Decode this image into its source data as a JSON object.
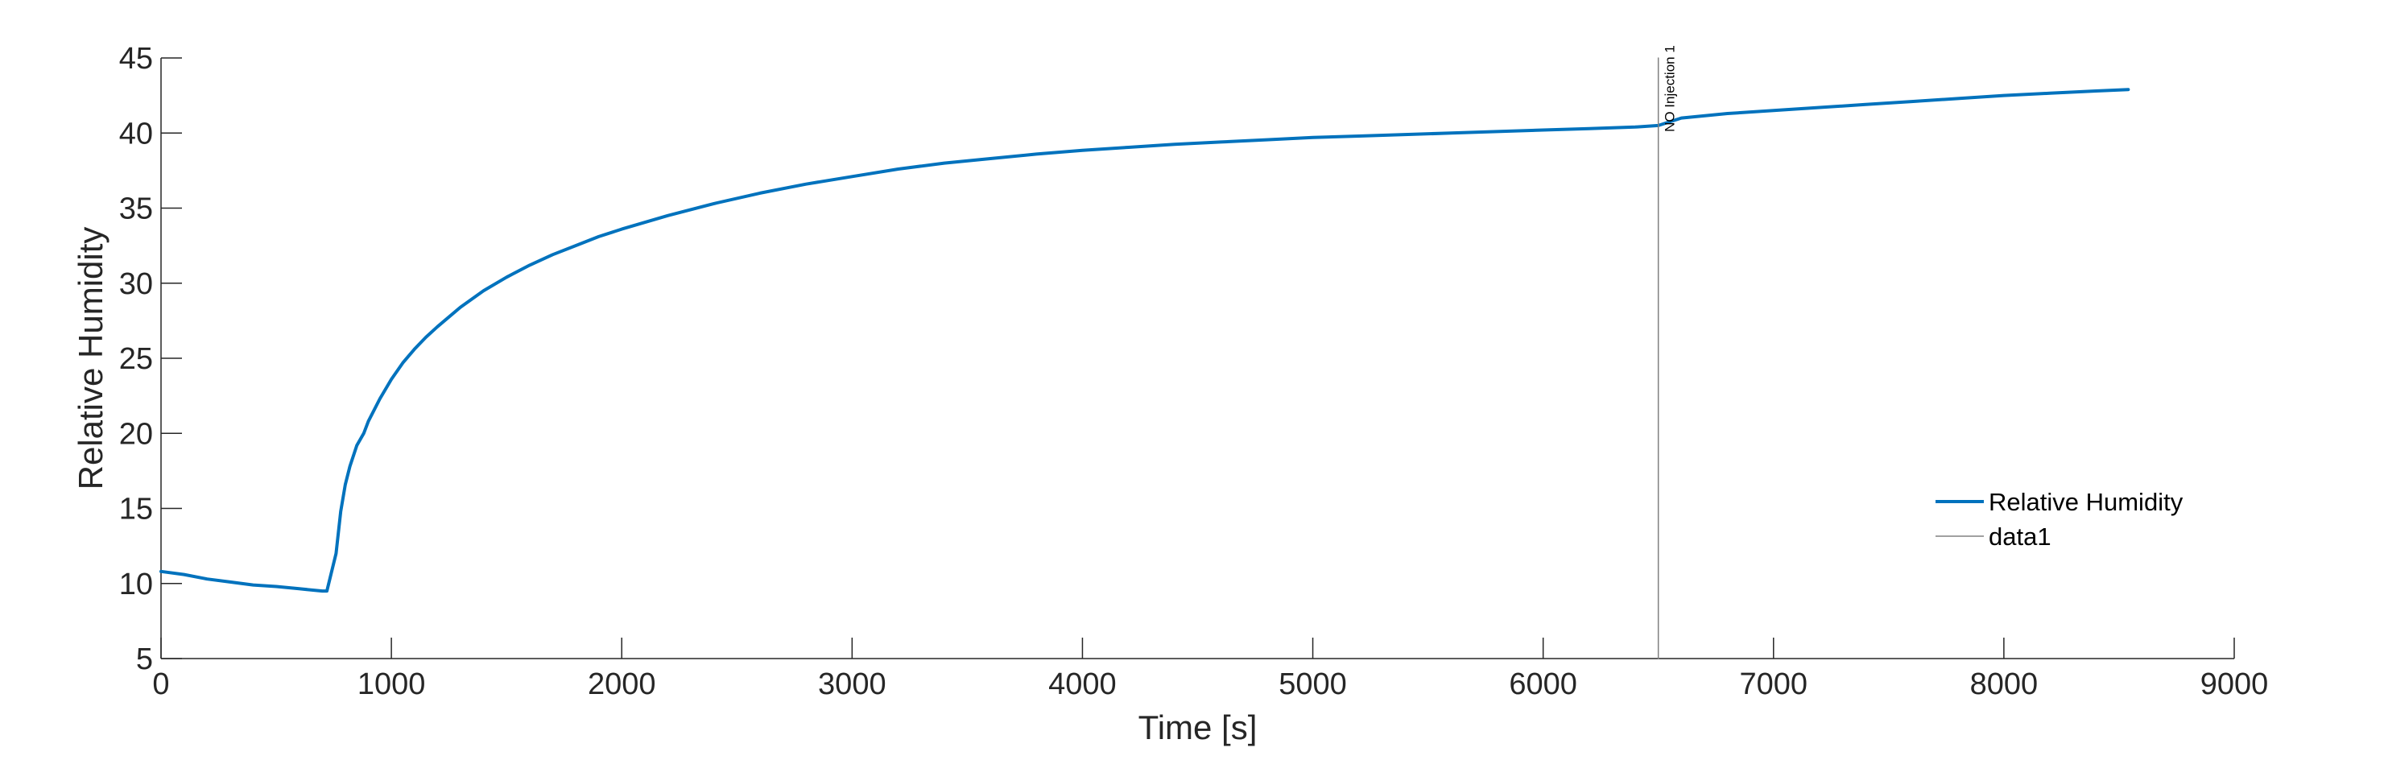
{
  "chart_data": {
    "type": "line",
    "xlabel": "Time [s]",
    "ylabel": "Relative Humidity",
    "xlim": [
      0,
      9000
    ],
    "ylim": [
      5,
      45
    ],
    "xticks": [
      0,
      1000,
      2000,
      3000,
      4000,
      5000,
      6000,
      7000,
      8000,
      9000
    ],
    "yticks": [
      5,
      10,
      15,
      20,
      25,
      30,
      35,
      40,
      45
    ],
    "grid": false,
    "legend_position": "lower-right",
    "series": [
      {
        "name": "Relative Humidity",
        "color": "#0072BD",
        "x": [
          0,
          100,
          200,
          300,
          400,
          500,
          600,
          700,
          720,
          760,
          780,
          800,
          820,
          850,
          880,
          900,
          950,
          1000,
          1050,
          1100,
          1150,
          1200,
          1300,
          1400,
          1500,
          1600,
          1700,
          1800,
          1900,
          2000,
          2200,
          2400,
          2600,
          2800,
          3000,
          3200,
          3400,
          3600,
          3800,
          4000,
          4200,
          4400,
          4600,
          4800,
          5000,
          5200,
          5400,
          5600,
          5800,
          6000,
          6200,
          6400,
          6500,
          6600,
          6800,
          7000,
          7200,
          7400,
          7600,
          7800,
          8000,
          8200,
          8400,
          8540
        ],
        "y": [
          10.8,
          10.6,
          10.3,
          10.1,
          9.9,
          9.8,
          9.65,
          9.5,
          9.5,
          12.0,
          14.8,
          16.6,
          17.8,
          19.2,
          20.0,
          20.8,
          22.3,
          23.6,
          24.7,
          25.6,
          26.4,
          27.1,
          28.4,
          29.5,
          30.4,
          31.2,
          31.9,
          32.5,
          33.1,
          33.6,
          34.5,
          35.3,
          36.0,
          36.6,
          37.1,
          37.6,
          38.0,
          38.3,
          38.6,
          38.85,
          39.05,
          39.25,
          39.4,
          39.55,
          39.7,
          39.8,
          39.9,
          40.0,
          40.1,
          40.2,
          40.3,
          40.4,
          40.5,
          41.0,
          41.3,
          41.5,
          41.7,
          41.9,
          42.1,
          42.3,
          42.5,
          42.65,
          42.8,
          42.9
        ]
      },
      {
        "name": "data1",
        "color": "#808080",
        "x": [
          6500,
          6500
        ],
        "y": [
          5,
          45
        ]
      }
    ],
    "annotations": [
      {
        "text": "NO Injection 1",
        "x": 6500,
        "y": 40.5
      }
    ]
  }
}
